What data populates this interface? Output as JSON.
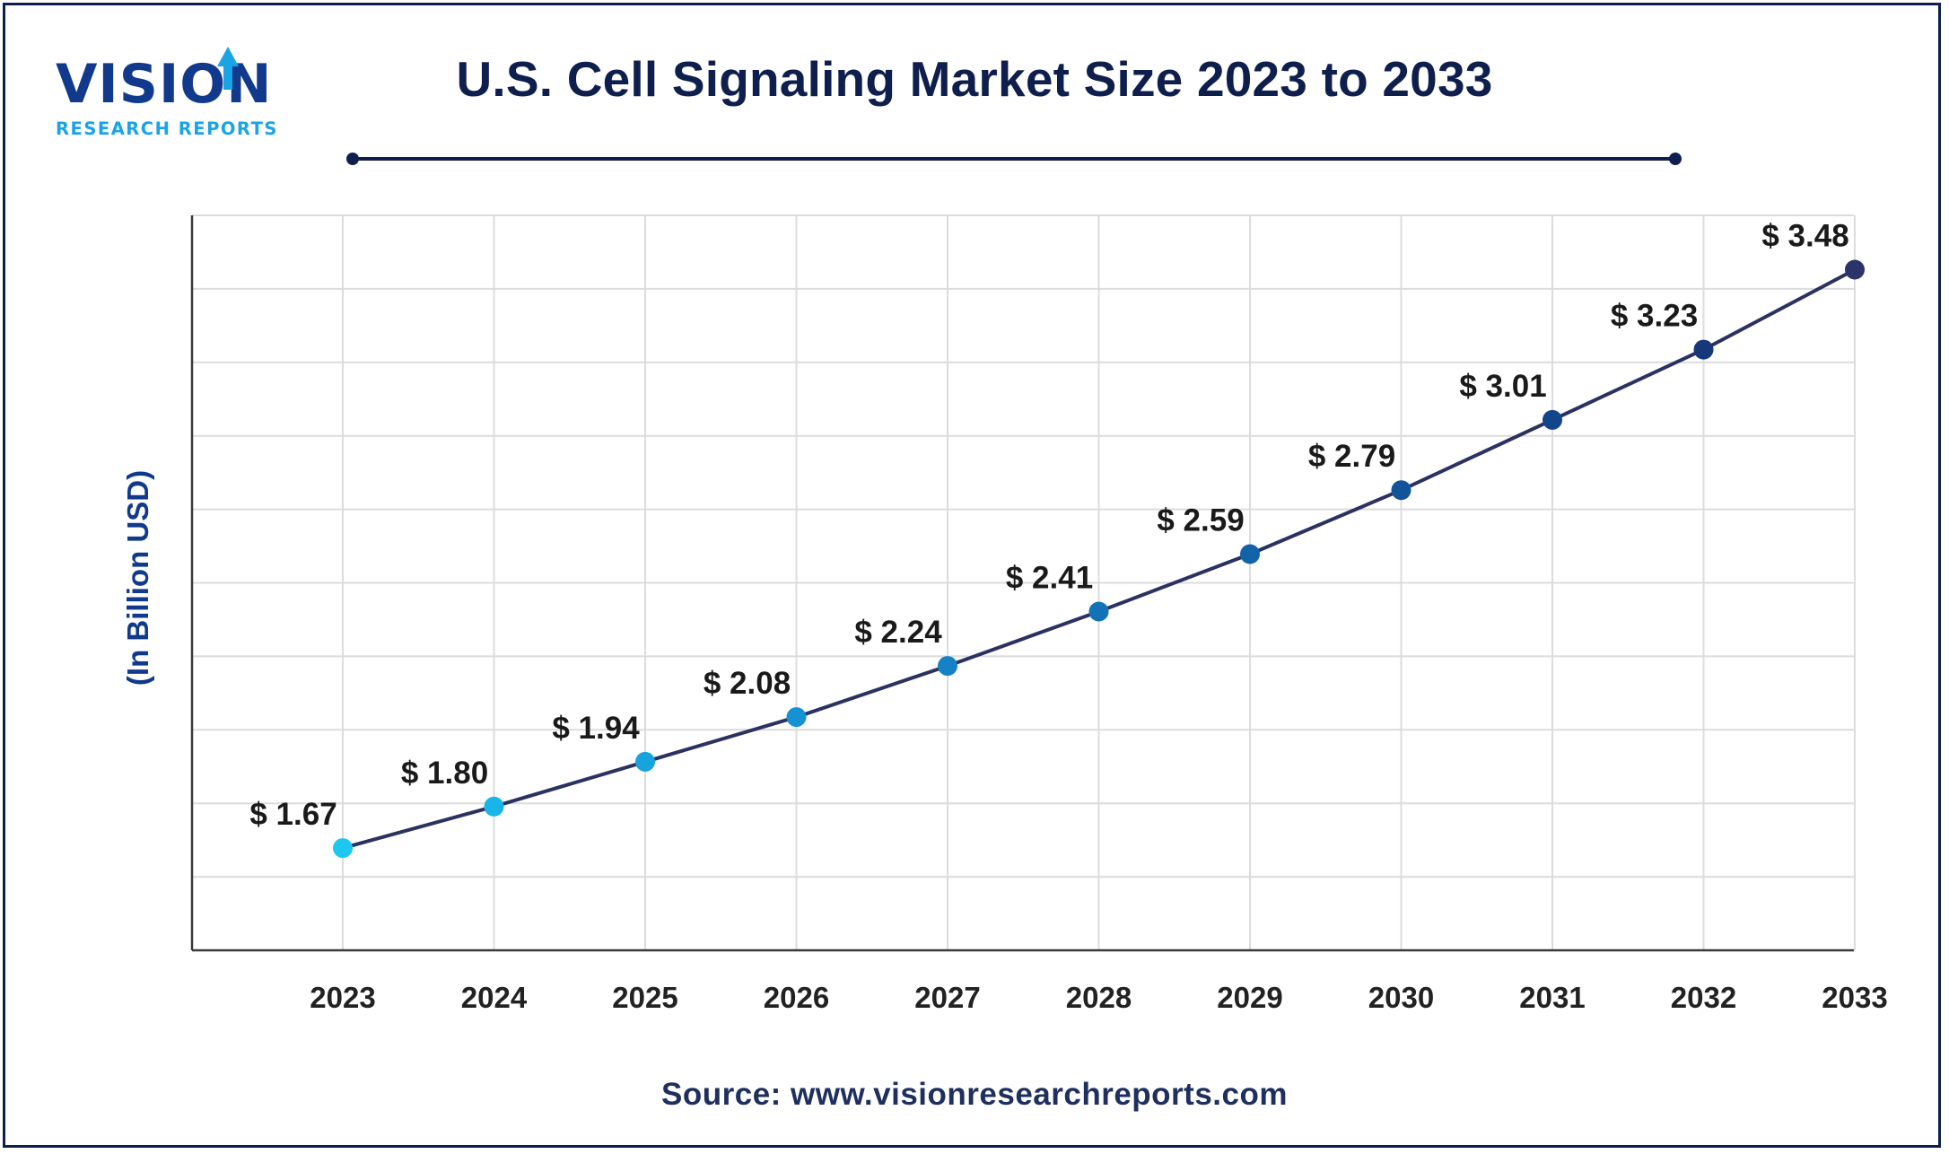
{
  "brand": {
    "logo_word": "VISION",
    "logo_sub": "RESEARCH REPORTS",
    "colors": {
      "navy": "#123a8c",
      "sky": "#1aa4e6",
      "dark": "#0f1f4d"
    }
  },
  "source": "Source: www.visionresearchreports.com",
  "chart_data": {
    "type": "line",
    "title": "U.S. Cell Signaling Market Size 2023 to 2033",
    "ylabel": "(In Billion USD)",
    "xlabel": "",
    "categories": [
      "2023",
      "2024",
      "2025",
      "2026",
      "2027",
      "2028",
      "2029",
      "2030",
      "2031",
      "2032",
      "2033"
    ],
    "values": [
      1.67,
      1.8,
      1.94,
      2.08,
      2.24,
      2.41,
      2.59,
      2.79,
      3.01,
      3.23,
      3.48
    ],
    "data_labels": [
      "$ 1.67",
      "$ 1.80",
      "$ 1.94",
      "$ 2.08",
      "$ 2.24",
      "$ 2.41",
      "$ 2.59",
      "$ 2.79",
      "$ 3.01",
      "$ 3.23",
      "$ 3.48"
    ],
    "ylim": [
      1.35,
      3.65
    ],
    "grid": true,
    "legend": "none",
    "point_colors": [
      "#1cc8f0",
      "#19b4e8",
      "#16a3de",
      "#1592d2",
      "#1482c4",
      "#1372b5",
      "#1263a8",
      "#12549a",
      "#13458b",
      "#16387a",
      "#2a3468"
    ],
    "line_color": "#2b3160"
  }
}
